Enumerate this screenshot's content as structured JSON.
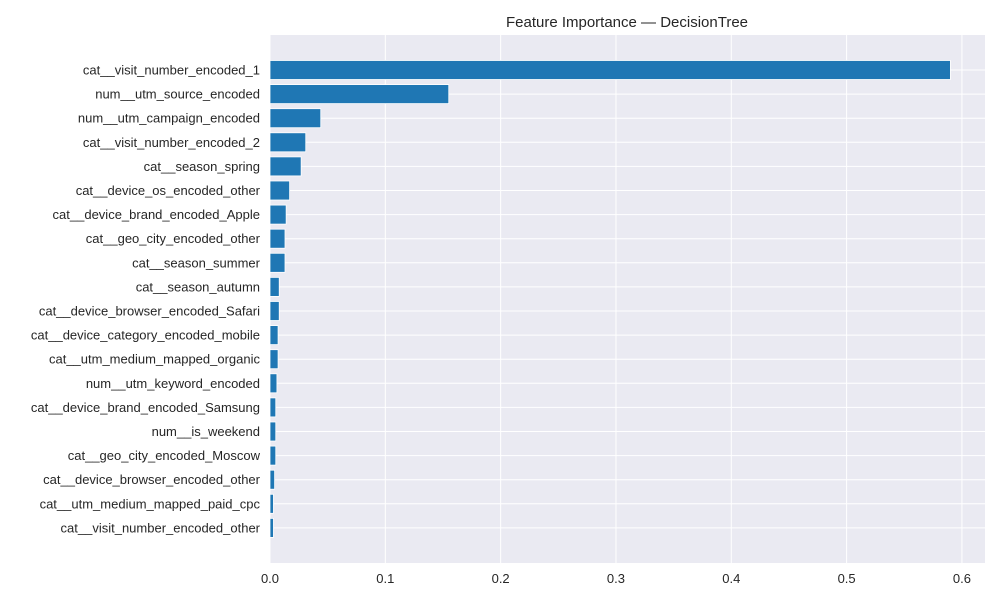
{
  "colors": {
    "bar": "#1f77b4",
    "plot_background": "#eaeaf2",
    "grid": "#ffffff",
    "text": "#262626"
  },
  "chart_data": {
    "type": "bar",
    "orientation": "horizontal",
    "title": "Feature Importance — DecisionTree",
    "xlabel": "",
    "ylabel": "",
    "xlim": [
      0,
      0.62
    ],
    "xticks": [
      0.0,
      0.1,
      0.2,
      0.3,
      0.4,
      0.5,
      0.6
    ],
    "xtick_labels": [
      "0.0",
      "0.1",
      "0.2",
      "0.3",
      "0.4",
      "0.5",
      "0.6"
    ],
    "grid": true,
    "categories": [
      "cat__visit_number_encoded_1",
      "num__utm_source_encoded",
      "num__utm_campaign_encoded",
      "cat__visit_number_encoded_2",
      "cat__season_spring",
      "cat__device_os_encoded_other",
      "cat__device_brand_encoded_Apple",
      "cat__geo_city_encoded_other",
      "cat__season_summer",
      "cat__season_autumn",
      "cat__device_browser_encoded_Safari",
      "cat__device_category_encoded_mobile",
      "cat__utm_medium_mapped_organic",
      "num__utm_keyword_encoded",
      "cat__device_brand_encoded_Samsung",
      "num__is_weekend",
      "cat__geo_city_encoded_Moscow",
      "cat__device_browser_encoded_other",
      "cat__utm_medium_mapped_paid_cpc",
      "cat__visit_number_encoded_other"
    ],
    "values": [
      0.59,
      0.155,
      0.044,
      0.031,
      0.027,
      0.017,
      0.014,
      0.013,
      0.013,
      0.008,
      0.008,
      0.007,
      0.007,
      0.006,
      0.005,
      0.005,
      0.005,
      0.004,
      0.003,
      0.003
    ]
  }
}
